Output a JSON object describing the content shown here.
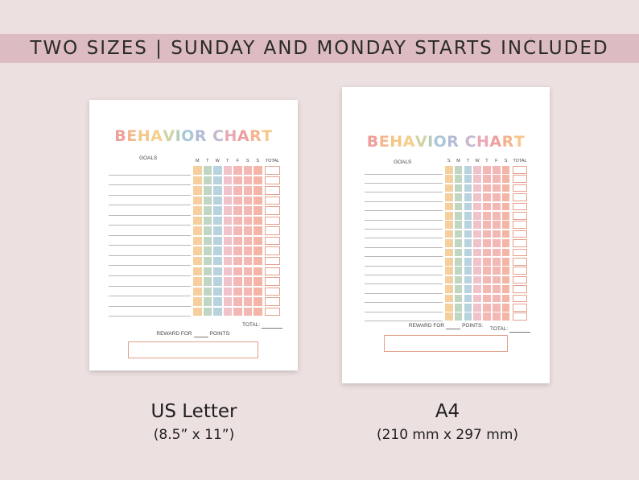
{
  "banner": {
    "text": "TWO SIZES | SUNDAY AND MONDAY STARTS INCLUDED"
  },
  "palette": {
    "background": "#ede0e0",
    "banner": "#dcbcc0",
    "columns": [
      "#f6cf9e",
      "#bfd7c2",
      "#b9d3de",
      "#f0c3cb",
      "#f3b8b3",
      "#f3b8b3",
      "#f4b4a6"
    ],
    "title_letters": [
      "#ee9f99",
      "#f2b98e",
      "#f4c688",
      "#f5cf8a",
      "#cfd4a4",
      "#b3cdb9",
      "#a9c7d6",
      "#b2bcd4",
      "#c6b7cd",
      "#e8a9b4",
      "#ec9f9e",
      "#f3b48f",
      "#f6c88b",
      "#d1d4a5",
      "#aec6cc",
      "#a6c2d4",
      "#c4b4cc",
      "#e9a3ad"
    ],
    "box_border": "#e3a08c"
  },
  "sheets": [
    {
      "id": "us-letter",
      "chart_title": "BEHAVIOR CHART",
      "goals_label": "GOALS",
      "days": [
        "M",
        "T",
        "W",
        "T",
        "F",
        "S",
        "S"
      ],
      "total_label": "TOTAL",
      "rows": 15,
      "footer_total": "TOTAL:",
      "reward_pre": "REWARD FOR",
      "reward_post": "POINTS:",
      "size_name": "US Letter",
      "size_detail": "(8.5” x 11”)"
    },
    {
      "id": "a4",
      "chart_title": "BEHAVIOR CHART",
      "goals_label": "GOALS",
      "days": [
        "S",
        "M",
        "T",
        "W",
        "T",
        "F",
        "S"
      ],
      "total_label": "TOTAL",
      "rows": 17,
      "footer_total": "TOTAL:",
      "reward_pre": "REWARD FOR",
      "reward_post": "POINTS:",
      "size_name": "A4",
      "size_detail": "(210 mm x 297 mm)"
    }
  ]
}
